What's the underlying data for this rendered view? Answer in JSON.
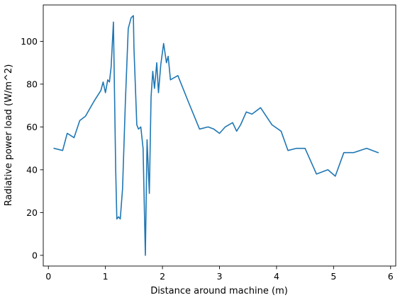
{
  "chart_data": {
    "type": "line",
    "title": "",
    "xlabel": "Distance around machine (m)",
    "ylabel": "Radiative power load (W/m^2)",
    "xlim": [
      -0.09,
      6.09
    ],
    "ylim": [
      -5,
      117
    ],
    "xticks": [
      0,
      1,
      2,
      3,
      4,
      5,
      6
    ],
    "yticks": [
      0,
      20,
      40,
      60,
      80,
      100
    ],
    "grid": false,
    "colors": {
      "line": "#1f77b4"
    },
    "series": [
      {
        "name": "",
        "x": [
          0.1,
          0.25,
          0.33,
          0.45,
          0.55,
          0.65,
          0.8,
          0.92,
          0.96,
          1.0,
          1.04,
          1.07,
          1.1,
          1.14,
          1.18,
          1.2,
          1.23,
          1.26,
          1.3,
          1.35,
          1.4,
          1.45,
          1.49,
          1.5,
          1.55,
          1.58,
          1.62,
          1.66,
          1.7,
          1.73,
          1.77,
          1.8,
          1.83,
          1.86,
          1.9,
          1.93,
          1.97,
          2.02,
          2.07,
          2.1,
          2.14,
          2.27,
          2.45,
          2.65,
          2.8,
          2.9,
          3.0,
          3.1,
          3.23,
          3.3,
          3.37,
          3.47,
          3.57,
          3.72,
          3.92,
          4.08,
          4.2,
          4.35,
          4.5,
          4.7,
          4.9,
          5.03,
          5.18,
          5.35,
          5.58,
          5.78
        ],
        "y": [
          50,
          49,
          57,
          55,
          63,
          65,
          72,
          77,
          81,
          76,
          82,
          81,
          88,
          109,
          40,
          17,
          18,
          17,
          31,
          72,
          106,
          111,
          112,
          97,
          61,
          59,
          60,
          50,
          0,
          54,
          29,
          74,
          86,
          78,
          90,
          76,
          89,
          99,
          90,
          93,
          82,
          84,
          72,
          59,
          60,
          59,
          57,
          60,
          62,
          58,
          61,
          67,
          66,
          69,
          61,
          58,
          49,
          50,
          50,
          38,
          40,
          37,
          48,
          48,
          50,
          48
        ]
      }
    ]
  }
}
